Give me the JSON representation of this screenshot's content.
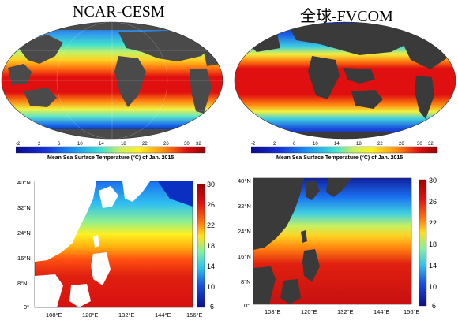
{
  "titles": {
    "left": "NCAR-CESM",
    "right": "全球-FVCOM"
  },
  "global_colorbar": {
    "ticks": [
      "-2",
      "2",
      "6",
      "10",
      "14",
      "18",
      "22",
      "26",
      "30",
      "32"
    ],
    "label": "Mean Sea Surface Temperature (°C) of Jan. 2015"
  },
  "regional": {
    "lat_labels": [
      "40°N",
      "32°N",
      "24°N",
      "16°N",
      "8°N",
      "0°"
    ],
    "lon_labels": [
      "108°E",
      "120°E",
      "132°E",
      "144°E",
      "156°E"
    ],
    "colorbar_ticks": [
      "30",
      "26",
      "22",
      "18",
      "14",
      "10",
      "6"
    ]
  },
  "colors": {
    "land_global": "#4a4a4a",
    "land_regional": "#ffffff",
    "land_regional_fvcom": "#3a3a3a",
    "ramp": [
      "#0b0b8a",
      "#1530d8",
      "#1a78f0",
      "#2ac8f2",
      "#6cf0c0",
      "#c8f060",
      "#fff020",
      "#ffb010",
      "#ff5010",
      "#e01010",
      "#a00000"
    ]
  }
}
